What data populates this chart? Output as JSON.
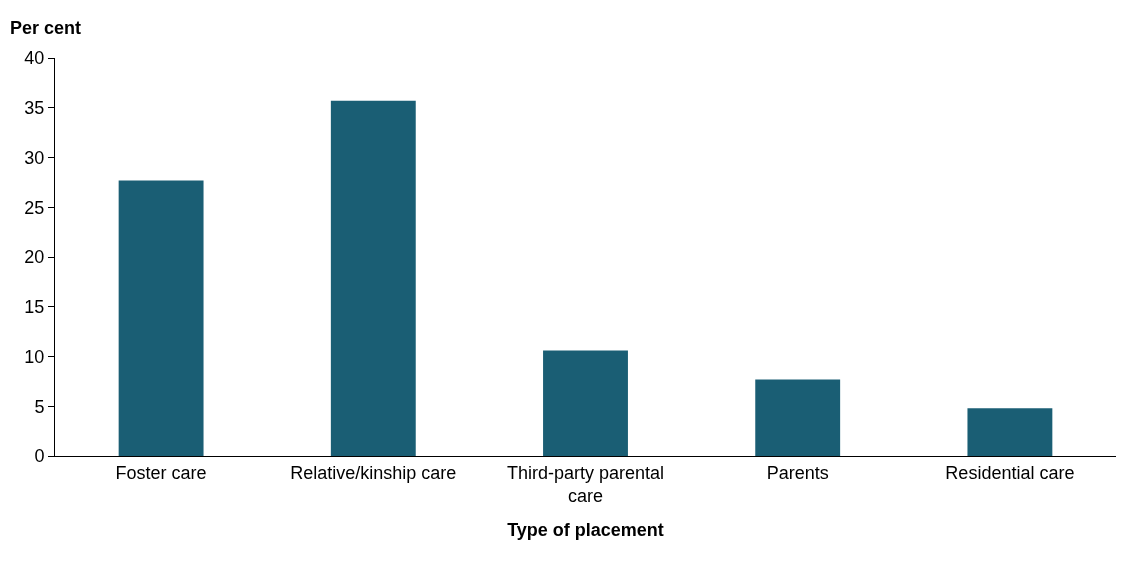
{
  "chart_data": {
    "type": "bar",
    "xlabel": "Type of placement",
    "ylabel": "Per cent",
    "categories": [
      "Foster care",
      "Relative/kinship care",
      "Third-party parental care",
      "Parents",
      "Residential care"
    ],
    "values": [
      27.7,
      35.7,
      10.6,
      7.7,
      4.8
    ],
    "color": "#1a5e74",
    "ylim": [
      0,
      40
    ],
    "yticks": [
      0,
      5,
      10,
      15,
      20,
      25,
      30,
      35,
      40
    ],
    "grid": false,
    "legend": false
  }
}
